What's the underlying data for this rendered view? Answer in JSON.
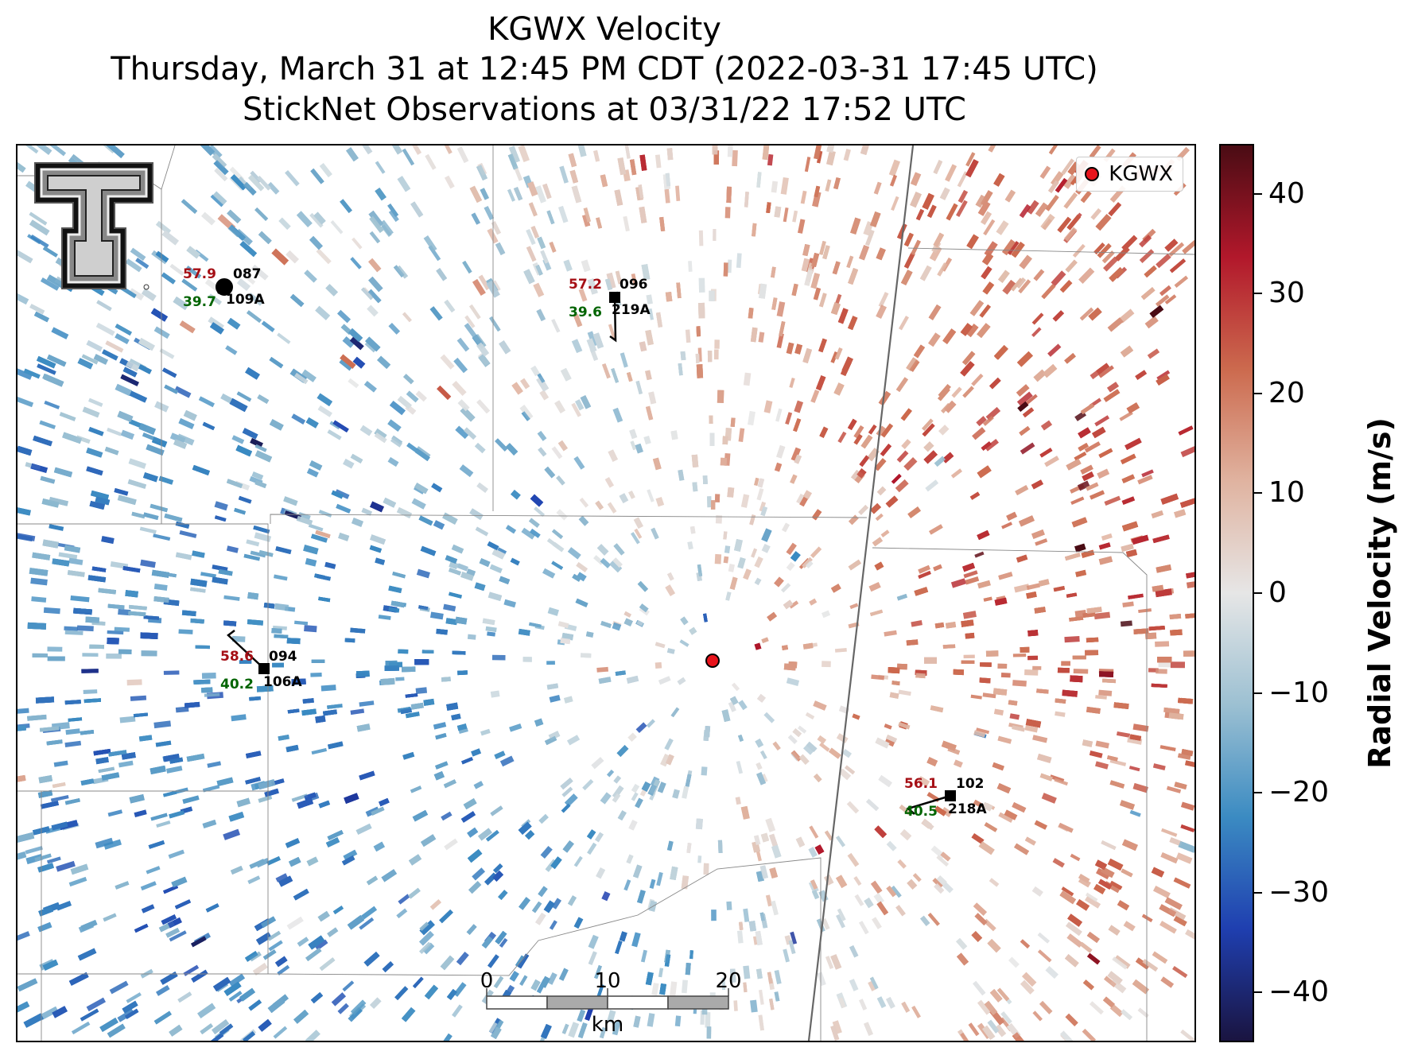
{
  "title": {
    "line1": "KGWX Velocity",
    "line2": "Thursday, March 31 at 12:45 PM CDT (2022-03-31 17:45 UTC)",
    "line3": "StickNet Observations at 03/31/22 17:52 UTC"
  },
  "legend": {
    "label": "KGWX",
    "marker_color": "#e8141c"
  },
  "radar": {
    "id": "KGWX"
  },
  "colorbar": {
    "label": "Radial Velocity (m/s)",
    "ticks": [
      "40",
      "30",
      "20",
      "10",
      "0",
      "−10",
      "−20",
      "−30",
      "−40"
    ],
    "range": [
      -45,
      45
    ],
    "colors": [
      "#1a1440",
      "#1f3fb0",
      "#3b8bc2",
      "#9cc0d2",
      "#e6e6e6",
      "#e0b3a0",
      "#cc6a4e",
      "#b2182b",
      "#4a0c14"
    ]
  },
  "stations": [
    {
      "temp": "57.9",
      "dewpoint": "39.7",
      "id_top": "087",
      "id_bottom": "109A",
      "marker": "circle"
    },
    {
      "temp": "57.2",
      "dewpoint": "39.6",
      "id_top": "096",
      "id_bottom": "219A",
      "marker": "square"
    },
    {
      "temp": "58.6",
      "dewpoint": "40.2",
      "id_top": "094",
      "id_bottom": "106A",
      "marker": "square"
    },
    {
      "temp": "56.1",
      "dewpoint": "40.5",
      "id_top": "102",
      "id_bottom": "218A",
      "marker": "square"
    }
  ],
  "scale_bar": {
    "labels": [
      "0",
      "10",
      "20"
    ],
    "unit": "km"
  },
  "logo": {
    "name": "texas-tech-double-t-logo"
  }
}
